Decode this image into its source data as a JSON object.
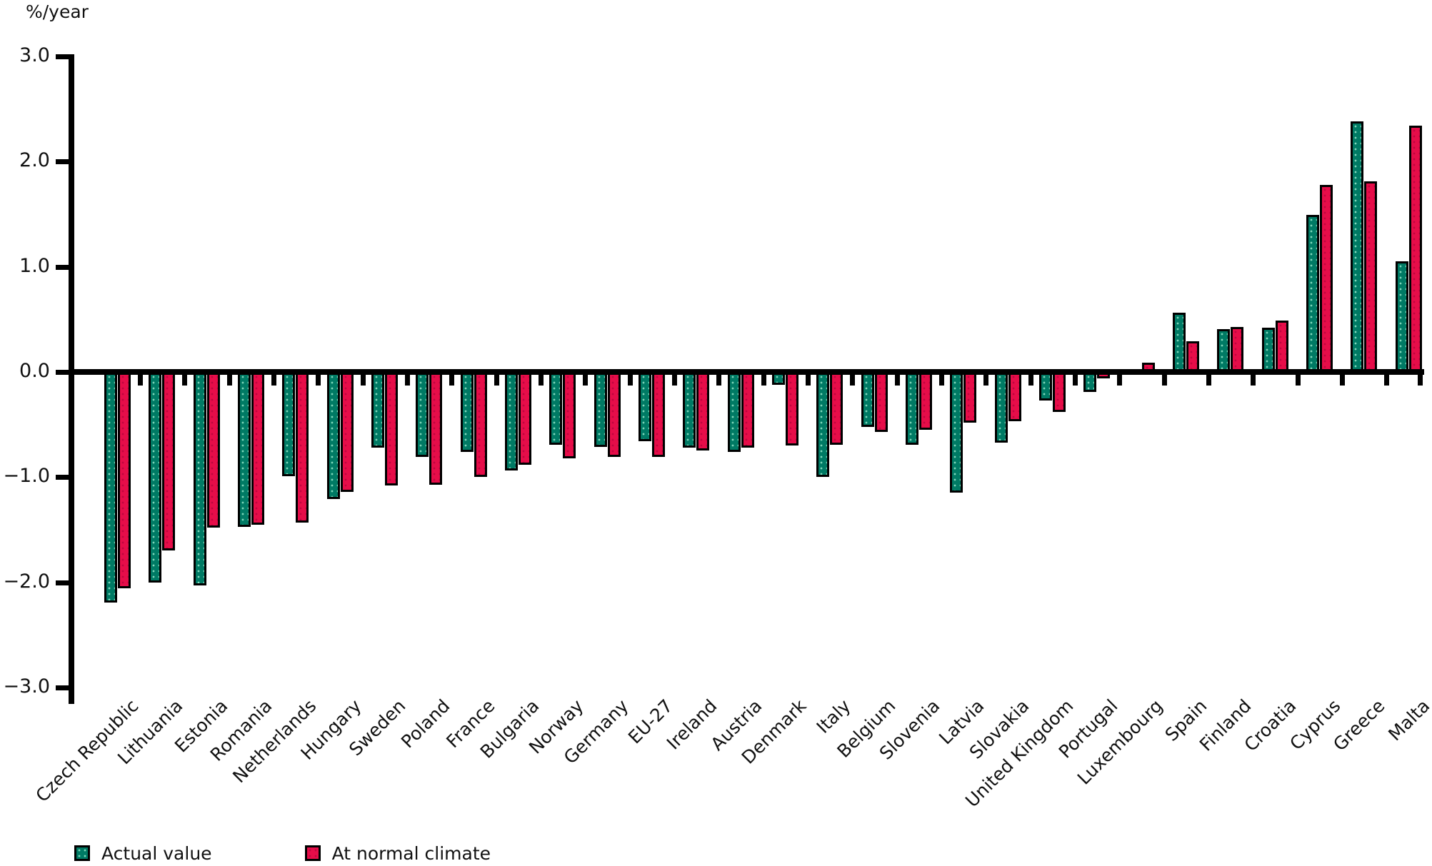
{
  "chart_data": {
    "type": "bar",
    "unit_label": "%/year",
    "categories": [
      "Czech Republic",
      "Lithuania",
      "Estonia",
      "Romania",
      "Netherlands",
      "Hungary",
      "Sweden",
      "Poland",
      "France",
      "Bulgaria",
      "Norway",
      "Germany",
      "EU-27",
      "Ireland",
      "Austria",
      "Denmark",
      "Italy",
      "Belgium",
      "Slovenia",
      "Latvia",
      "Slovakia",
      "United Kingdom",
      "Portugal",
      "Luxembourg",
      "Spain",
      "Finland",
      "Croatia",
      "Cyprus",
      "Greece",
      "Malta"
    ],
    "series": [
      {
        "name": "Actual value",
        "color": "#007a64",
        "values": [
          -2.19,
          -2.0,
          -2.03,
          -1.47,
          -0.99,
          -1.21,
          -0.72,
          -0.81,
          -0.76,
          -0.94,
          -0.69,
          -0.71,
          -0.66,
          -0.72,
          -0.76,
          -0.12,
          -1.0,
          -0.52,
          -0.69,
          -1.15,
          -0.67,
          -0.27,
          -0.19,
          0.0,
          0.56,
          0.41,
          0.42,
          1.49,
          2.38,
          1.05
        ]
      },
      {
        "name": "At normal climate",
        "color": "#e60d49",
        "values": [
          -2.06,
          -1.7,
          -1.48,
          -1.45,
          -1.43,
          -1.14,
          -1.08,
          -1.07,
          -1.0,
          -0.88,
          -0.82,
          -0.81,
          -0.81,
          -0.75,
          -0.72,
          -0.7,
          -0.69,
          -0.57,
          -0.55,
          -0.48,
          -0.47,
          -0.38,
          -0.06,
          0.09,
          0.29,
          0.43,
          0.49,
          1.78,
          1.81,
          2.34
        ]
      }
    ],
    "ylim": [
      -3.0,
      3.0
    ],
    "ytick_interval": 1.0,
    "ytick_labels": [
      "3.0",
      "2.0",
      "1.0",
      "0.0",
      "−1.0",
      "−2.0",
      "−3.0"
    ],
    "grid": "off",
    "legend_position": "bottom-left",
    "bar_outline_color": "#000000",
    "axis_color": "#000000"
  }
}
